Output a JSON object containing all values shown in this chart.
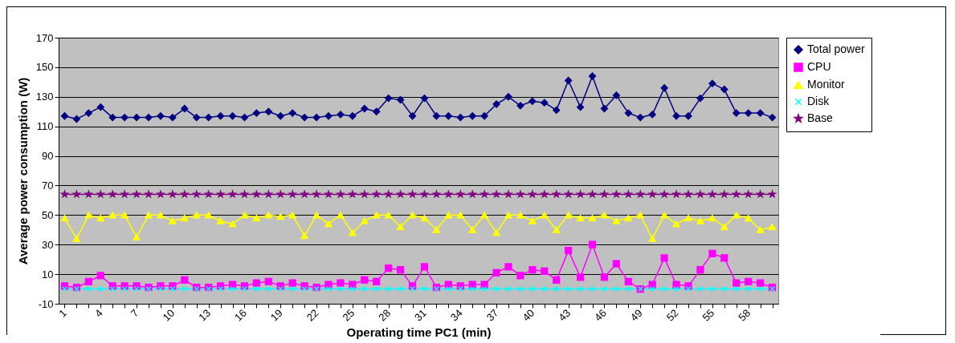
{
  "chart_data": {
    "type": "line",
    "xlabel": "Operating time PC1 (min)",
    "ylabel": "Average power consumption (W)",
    "categories": [
      "1",
      null,
      null,
      "4",
      null,
      null,
      "7",
      null,
      null,
      "10",
      null,
      null,
      "13",
      null,
      null,
      "16",
      null,
      null,
      "19",
      null,
      null,
      "22",
      null,
      null,
      "25",
      null,
      null,
      "28",
      null,
      null,
      "31",
      null,
      null,
      "34",
      null,
      null,
      "37",
      null,
      null,
      "40",
      null,
      null,
      "43",
      null,
      null,
      "46",
      null,
      null,
      "49",
      null,
      null,
      "52",
      null,
      null,
      "55",
      null,
      null,
      "58",
      null,
      null
    ],
    "ylim": [
      -10,
      170
    ],
    "yticks": [
      -10,
      10,
      30,
      50,
      70,
      90,
      110,
      130,
      150,
      170
    ],
    "grid": "y",
    "legend": "right",
    "series": [
      {
        "name": "Total power",
        "color": "#000080",
        "marker": "diamond",
        "values": [
          117,
          115,
          119,
          123,
          116,
          116,
          116,
          116,
          117,
          116,
          122,
          116,
          116,
          117,
          117,
          116,
          119,
          120,
          117,
          119,
          116,
          116,
          117,
          118,
          117,
          122,
          120,
          129,
          128,
          117,
          129,
          117,
          117,
          116,
          117,
          117,
          125,
          130,
          124,
          127,
          126,
          121,
          141,
          123,
          144,
          122,
          131,
          119,
          116,
          118,
          136,
          117,
          117,
          129,
          139,
          135,
          119,
          119,
          119,
          116
        ]
      },
      {
        "name": "CPU",
        "color": "#ff00ff",
        "marker": "square",
        "values": [
          2,
          1,
          5,
          9,
          2,
          2,
          2,
          1,
          2,
          2,
          6,
          1,
          1,
          2,
          3,
          2,
          4,
          5,
          2,
          4,
          2,
          1,
          3,
          4,
          3,
          6,
          5,
          14,
          13,
          2,
          15,
          1,
          3,
          2,
          3,
          3,
          11,
          15,
          9,
          13,
          12,
          6,
          26,
          8,
          30,
          8,
          17,
          5,
          0,
          3,
          21,
          3,
          2,
          13,
          24,
          21,
          4,
          5,
          4,
          1
        ]
      },
      {
        "name": "Monitor",
        "color": "#ffff00",
        "marker": "triangle",
        "values": [
          48,
          34,
          50,
          48,
          50,
          50,
          35,
          50,
          50,
          46,
          48,
          50,
          50,
          46,
          44,
          50,
          48,
          50,
          49,
          50,
          36,
          50,
          44,
          50,
          38,
          46,
          50,
          50,
          42,
          50,
          48,
          40,
          50,
          50,
          40,
          50,
          38,
          50,
          50,
          46,
          50,
          40,
          50,
          48,
          48,
          50,
          46,
          48,
          50,
          34,
          50,
          44,
          48,
          46,
          48,
          42,
          50,
          48,
          40,
          42
        ]
      },
      {
        "name": "Disk",
        "color": "#00ffff",
        "marker": "cross",
        "values": [
          0,
          0,
          0,
          0,
          0,
          0,
          0,
          0,
          0,
          0,
          0,
          0,
          0,
          0,
          0,
          0,
          0,
          0,
          0,
          0,
          0,
          0,
          0,
          0,
          0,
          0,
          0,
          0,
          0,
          0,
          0,
          0,
          0,
          0,
          0,
          0,
          0,
          0,
          0,
          0,
          0,
          0,
          0,
          0,
          0,
          0,
          0,
          0,
          0,
          0,
          0,
          0,
          0,
          0,
          0,
          0,
          0,
          0,
          0,
          0
        ]
      },
      {
        "name": "Base",
        "color": "#800080",
        "marker": "star",
        "values": [
          64,
          64,
          64,
          64,
          64,
          64,
          64,
          64,
          64,
          64,
          64,
          64,
          64,
          64,
          64,
          64,
          64,
          64,
          64,
          64,
          64,
          64,
          64,
          64,
          64,
          64,
          64,
          64,
          64,
          64,
          64,
          64,
          64,
          64,
          64,
          64,
          64,
          64,
          64,
          64,
          64,
          64,
          64,
          64,
          64,
          64,
          64,
          64,
          64,
          64,
          64,
          64,
          64,
          64,
          64,
          64,
          64,
          64,
          64,
          64
        ]
      }
    ]
  }
}
